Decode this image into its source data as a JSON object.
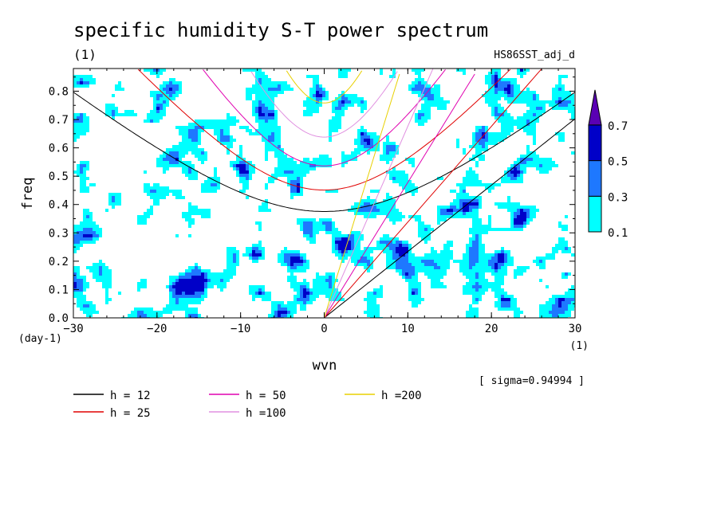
{
  "chart_data": {
    "type": "heatmap",
    "title": "specific humidity S-T power spectrum",
    "subtitle_left": "(1)",
    "subtitle_right": "HS86SST_adj_d",
    "xlabel": "wvn",
    "ylabel": "freq",
    "x_unit": "(1)",
    "y_unit": "(day-1)",
    "xlim": [
      -30,
      30
    ],
    "ylim": [
      0,
      0.88
    ],
    "xticks": [
      -30,
      -20,
      -10,
      0,
      10,
      20,
      30
    ],
    "yticks": [
      0.0,
      0.1,
      0.2,
      0.3,
      0.4,
      0.5,
      0.6,
      0.7,
      0.8
    ],
    "note": "[ sigma=0.94994 ]",
    "colorbar": {
      "levels": [
        "0.1",
        "0.3",
        "0.5",
        "0.7"
      ],
      "colors": [
        "#00ffff",
        "#1e78ff",
        "#0000c8",
        "#5a00b4"
      ]
    },
    "series": [
      {
        "name": "h = 12",
        "color": "#000000",
        "h": 12
      },
      {
        "name": "h = 25",
        "color": "#e00000",
        "h": 25
      },
      {
        "name": "h = 50",
        "color": "#e000b0",
        "h": 50
      },
      {
        "name": "h =100",
        "color": "#e090e0",
        "h": 100
      },
      {
        "name": "h =200",
        "color": "#e8d000",
        "h": 200
      }
    ],
    "grid": false,
    "legend_position": "bottom-left"
  }
}
